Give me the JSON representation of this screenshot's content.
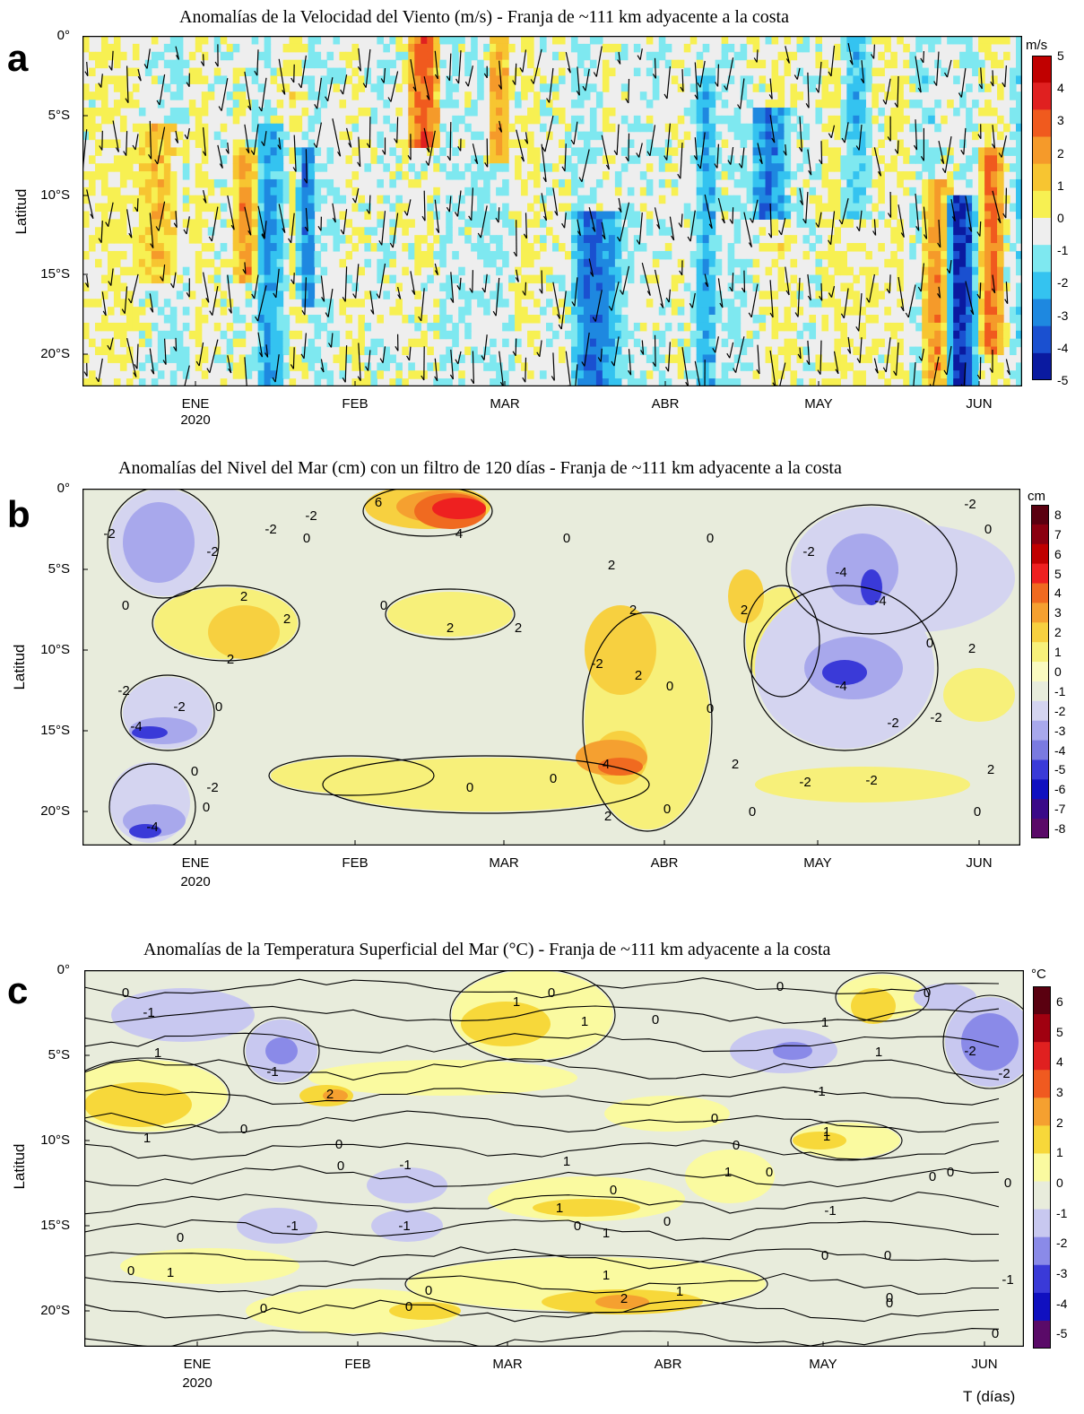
{
  "panels": [
    {
      "letter": "a",
      "title": "Anomalías de la Velocidad del Viento (m/s) - Franja de ~111 km adyacente a la costa",
      "ylabel": "Latitud",
      "unit": "m/s",
      "y_ticks": [
        "0°",
        "5°S",
        "10°S",
        "15°S",
        "20°S"
      ],
      "x_ticks": [
        "ENE",
        "FEB",
        "MAR",
        "ABR",
        "MAY",
        "JUN"
      ],
      "year": "2020",
      "colorbar": [
        "5",
        "4",
        "3",
        "2",
        "1",
        "0",
        "-1",
        "-2",
        "-3",
        "-4",
        "-5"
      ],
      "colors": [
        "#c00000",
        "#e02020",
        "#f05a1e",
        "#f59a2a",
        "#f7c531",
        "#f7f052",
        "#eeeeee",
        "#7ee8f0",
        "#34c3f0",
        "#1e88e0",
        "#1a50d0",
        "#0a1aa0"
      ]
    },
    {
      "letter": "b",
      "title": "Anomalías del Nivel del Mar (cm) con un filtro de 120 días - Franja de ~111 km adyacente a la costa",
      "ylabel": "Latitud",
      "unit": "cm",
      "y_ticks": [
        "0°",
        "5°S",
        "10°S",
        "15°S",
        "20°S"
      ],
      "x_ticks": [
        "ENE",
        "FEB",
        "MAR",
        "ABR",
        "MAY",
        "JUN"
      ],
      "year": "2020",
      "colorbar": [
        "8",
        "7",
        "6",
        "5",
        "4",
        "3",
        "2",
        "1",
        "0",
        "-1",
        "-2",
        "-3",
        "-4",
        "-5",
        "-6",
        "-7",
        "-8"
      ],
      "contour_labels": [
        "6",
        "4",
        "2",
        "0",
        "-2",
        "-4"
      ],
      "colors": [
        "#5a0010",
        "#8a0010",
        "#c00000",
        "#ee2020",
        "#f06a20",
        "#f5a030",
        "#f7d040",
        "#f7f07a",
        "#fafac0",
        "#e8ecdc",
        "#d4d4f0",
        "#a8a8ec",
        "#7a7ae0",
        "#3a3ad8",
        "#1010c0",
        "#3a0a88",
        "#5a0a68"
      ]
    },
    {
      "letter": "c",
      "title": "Anomalías de la Temperatura Superficial del Mar (°C) - Franja de ~111 km adyacente a la costa",
      "ylabel": "Latitud",
      "unit": "°C",
      "y_ticks": [
        "0°",
        "5°S",
        "10°S",
        "15°S",
        "20°S"
      ],
      "x_ticks": [
        "ENE",
        "FEB",
        "MAR",
        "ABR",
        "MAY",
        "JUN"
      ],
      "year": "2020",
      "colorbar": [
        "6",
        "5",
        "4",
        "3",
        "2",
        "1",
        "0",
        "-1",
        "-2",
        "-3",
        "-4",
        "-5"
      ],
      "contour_labels": [
        "2",
        "1",
        "0",
        "-1",
        "-2"
      ],
      "colors": [
        "#5a0010",
        "#a00010",
        "#e02020",
        "#f05a20",
        "#f5a030",
        "#f7d83a",
        "#fafaa0",
        "#e8ecdc",
        "#c8c8f0",
        "#8a8ae8",
        "#3a3ad8",
        "#1010c0",
        "#5a0a68"
      ]
    }
  ],
  "xaxis_label": "T (días)"
}
